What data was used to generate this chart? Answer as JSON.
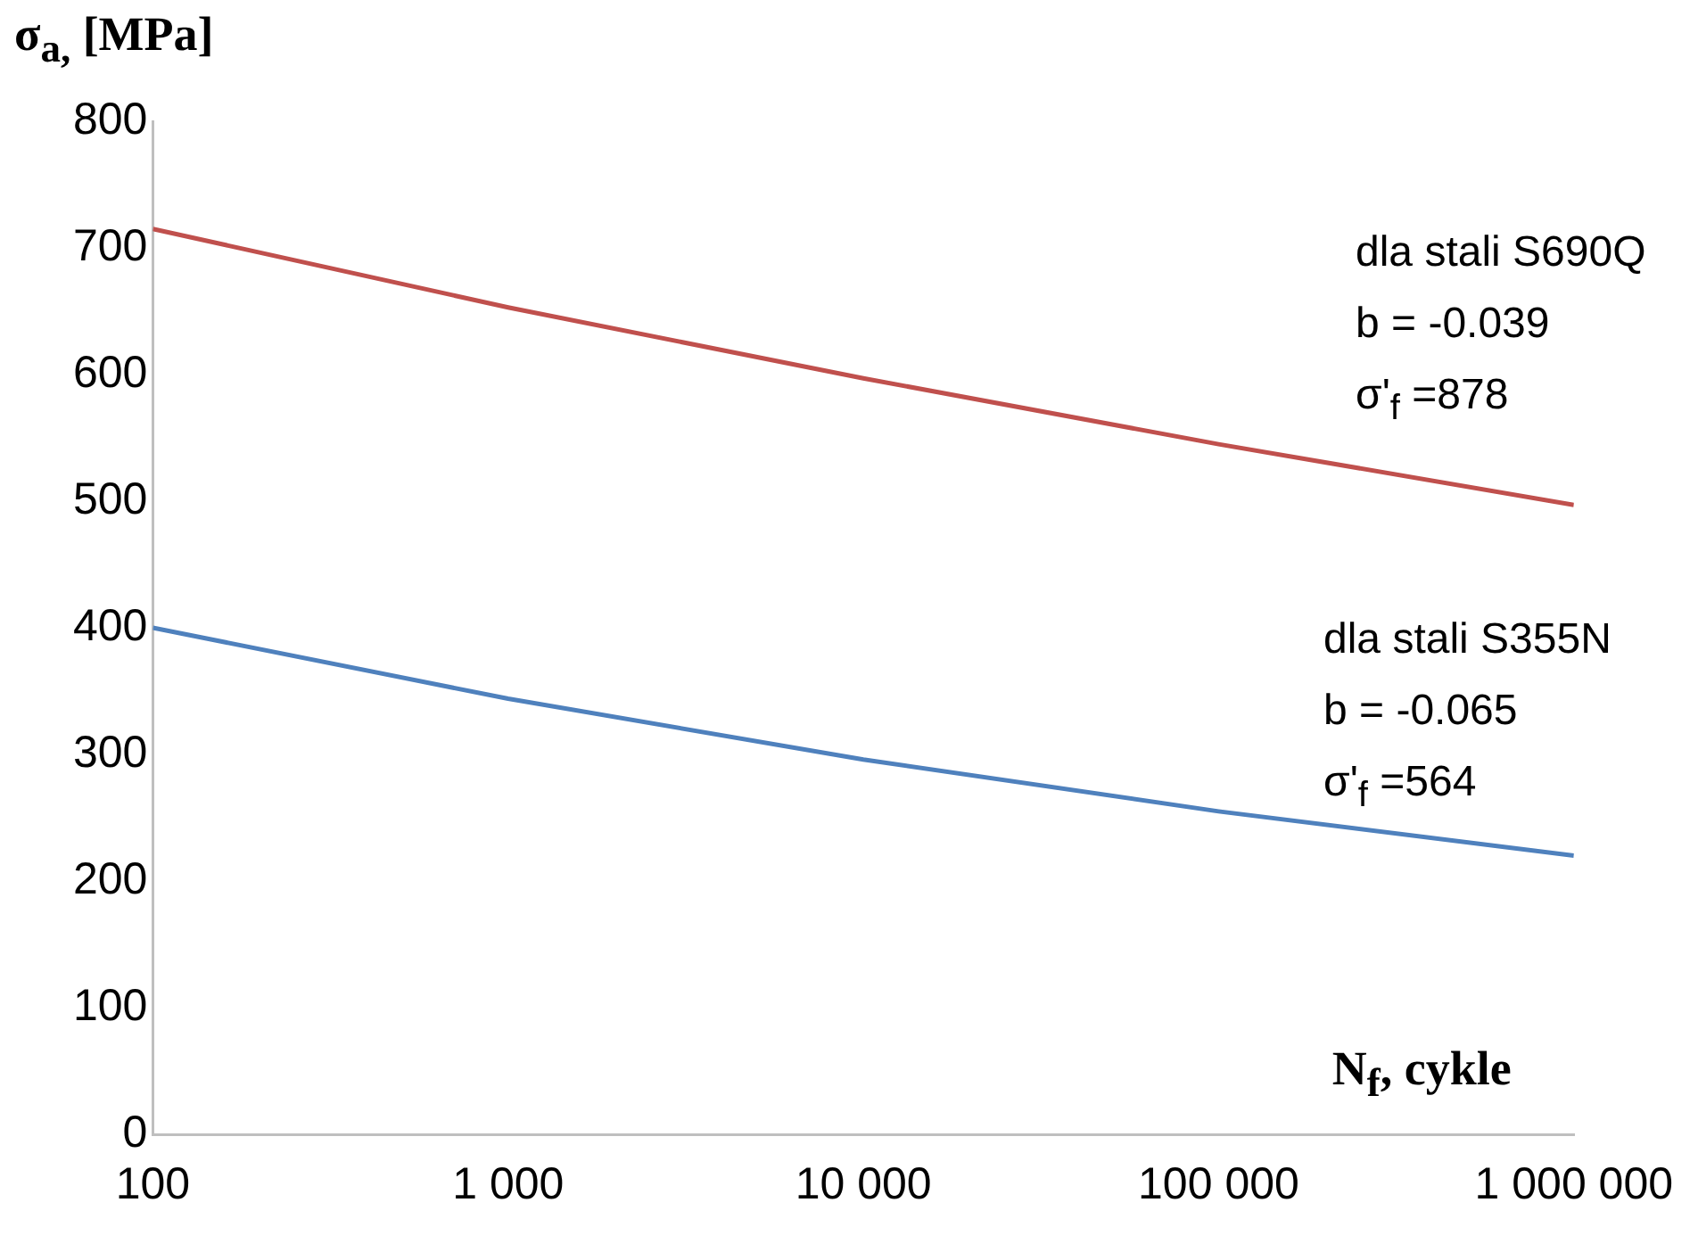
{
  "chart_data": {
    "type": "line",
    "ylabel": "σ$_{a,}$ [MPa]",
    "xlabel": "N$_{f}$, cykle",
    "x": [
      100,
      1000,
      10000,
      100000,
      1000000
    ],
    "series": [
      {
        "color": "#c0504d",
        "values": [
          715,
          653,
          597,
          545,
          497
        ]
      },
      {
        "color": "#4f81bd",
        "values": [
          400,
          344,
          296,
          255,
          220
        ]
      }
    ],
    "log": "x",
    "xlim": [
      100,
      1000000
    ],
    "xticks": [
      100,
      {
        "value": 1000,
        "label": "1 000"
      },
      {
        "value": 10000,
        "label": "10 000"
      },
      {
        "value": 100000,
        "label": "100 000"
      },
      {
        "value": 1000000,
        "label": "1 000 000"
      }
    ],
    "ylim": [
      0,
      800
    ],
    "yticks": [
      0,
      100,
      200,
      300,
      400,
      500,
      600,
      700,
      800
    ],
    "grid": false,
    "legend": false,
    "marker": "none",
    "line_style": "solid",
    "annotations": [
      "dla stali S690Q",
      "b = -0.039",
      "σ'$_{f}$ =878",
      "dla stali S355N",
      "b = -0.065",
      "σ'$_{f}$ =564"
    ]
  }
}
